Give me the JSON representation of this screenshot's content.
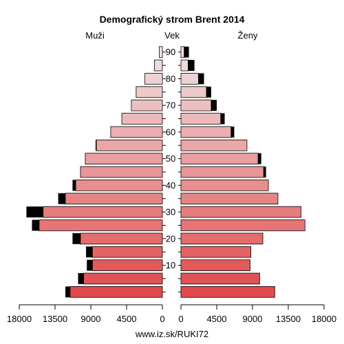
{
  "chart_data": {
    "type": "bar",
    "title": "Demografický strom Brent 2014",
    "left_label": "Muži",
    "center_label": "Vek",
    "right_label": "Ženy",
    "footer": "www.iz.sk/RUKI72",
    "age_tick_labels": [
      "10",
      "20",
      "30",
      "40",
      "50",
      "60",
      "70",
      "80",
      "90"
    ],
    "x_tick_labels_left": [
      "18000",
      "13500",
      "9000",
      "4500",
      "0"
    ],
    "x_tick_labels_right": [
      "0",
      "4500",
      "9000",
      "13500",
      "18000"
    ],
    "xlim": [
      0,
      18000
    ],
    "age_groups": [
      "0-4",
      "5-9",
      "10-14",
      "15-19",
      "20-24",
      "25-29",
      "30-34",
      "35-39",
      "40-44",
      "45-49",
      "50-54",
      "55-59",
      "60-64",
      "65-69",
      "70-74",
      "75-79",
      "80-84",
      "85-89",
      "90+"
    ],
    "series": [
      {
        "side": "left",
        "values": [
          11600,
          9900,
          8800,
          8800,
          10300,
          15500,
          15000,
          12200,
          10900,
          10300,
          9700,
          8300,
          6500,
          5100,
          3900,
          3300,
          2200,
          1000,
          400
        ],
        "excess": [
          600,
          700,
          700,
          800,
          1000,
          900,
          2100,
          900,
          400,
          0,
          0,
          100,
          0,
          0,
          0,
          0,
          0,
          0,
          0
        ],
        "excess_color": "#000000"
      },
      {
        "side": "right",
        "values": [
          11800,
          9900,
          8700,
          8800,
          10300,
          15600,
          15100,
          12200,
          11000,
          10400,
          9700,
          8300,
          6300,
          5000,
          3800,
          3200,
          2200,
          900,
          400
        ],
        "excess": [
          0,
          0,
          0,
          0,
          0,
          0,
          0,
          0,
          0,
          300,
          400,
          0,
          400,
          500,
          700,
          600,
          700,
          800,
          600
        ],
        "excess_color": "#000000"
      }
    ],
    "colors": {
      "dark": "#e04a4a",
      "light": "#f0e2e4",
      "bar_outline": "#000000"
    }
  }
}
